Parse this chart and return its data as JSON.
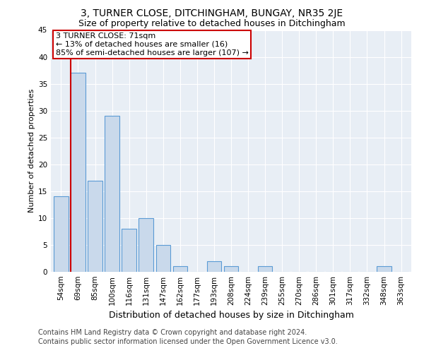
{
  "title": "3, TURNER CLOSE, DITCHINGHAM, BUNGAY, NR35 2JE",
  "subtitle": "Size of property relative to detached houses in Ditchingham",
  "xlabel": "Distribution of detached houses by size in Ditchingham",
  "ylabel": "Number of detached properties",
  "categories": [
    "54sqm",
    "69sqm",
    "85sqm",
    "100sqm",
    "116sqm",
    "131sqm",
    "147sqm",
    "162sqm",
    "177sqm",
    "193sqm",
    "208sqm",
    "224sqm",
    "239sqm",
    "255sqm",
    "270sqm",
    "286sqm",
    "301sqm",
    "317sqm",
    "332sqm",
    "348sqm",
    "363sqm"
  ],
  "values": [
    14,
    37,
    17,
    29,
    8,
    10,
    5,
    1,
    0,
    2,
    1,
    0,
    1,
    0,
    0,
    0,
    0,
    0,
    0,
    1,
    0
  ],
  "bar_color": "#c9d9eb",
  "bar_edge_color": "#5b9bd5",
  "marker_color": "#cc0000",
  "annotation_lines": [
    "3 TURNER CLOSE: 71sqm",
    "← 13% of detached houses are smaller (16)",
    "85% of semi-detached houses are larger (107) →"
  ],
  "annotation_box_color": "#ffffff",
  "annotation_box_edge_color": "#cc0000",
  "ylim": [
    0,
    45
  ],
  "yticks": [
    0,
    5,
    10,
    15,
    20,
    25,
    30,
    35,
    40,
    45
  ],
  "footer_line1": "Contains HM Land Registry data © Crown copyright and database right 2024.",
  "footer_line2": "Contains public sector information licensed under the Open Government Licence v3.0.",
  "fig_bg_color": "#ffffff",
  "plot_bg_color": "#e8eef5",
  "grid_color": "#ffffff",
  "title_fontsize": 10,
  "subtitle_fontsize": 9,
  "footer_fontsize": 7,
  "annotation_fontsize": 8,
  "ylabel_fontsize": 8,
  "xlabel_fontsize": 9,
  "tick_fontsize": 7.5
}
